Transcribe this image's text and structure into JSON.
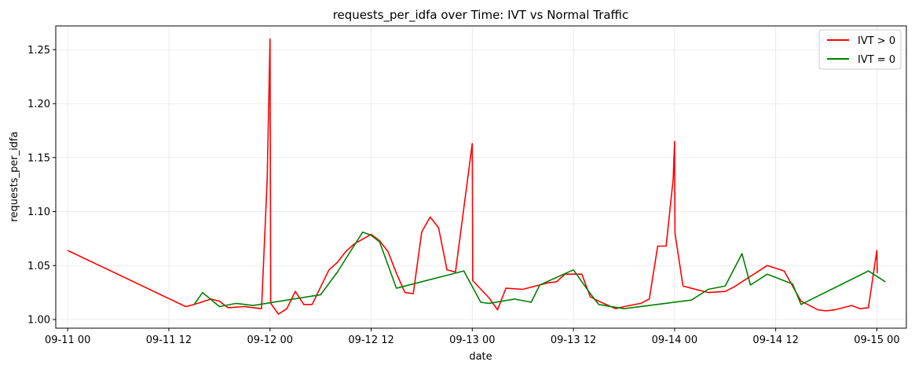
{
  "chart_data": {
    "type": "line",
    "title": "requests_per_idfa over Time: IVT vs Normal Traffic",
    "xlabel": "date",
    "ylabel": "requests_per_idfa",
    "x_unit": "datetime",
    "xlim": [
      "2024-09-10T22:35",
      "2024-09-15T03:30"
    ],
    "ylim": [
      0.992,
      1.272
    ],
    "x_ticks": [
      {
        "t": "2024-09-11T00:00",
        "label": "09-11 00"
      },
      {
        "t": "2024-09-11T12:00",
        "label": "09-11 12"
      },
      {
        "t": "2024-09-12T00:00",
        "label": "09-12 00"
      },
      {
        "t": "2024-09-12T12:00",
        "label": "09-12 12"
      },
      {
        "t": "2024-09-13T00:00",
        "label": "09-13 00"
      },
      {
        "t": "2024-09-13T12:00",
        "label": "09-13 12"
      },
      {
        "t": "2024-09-14T00:00",
        "label": "09-14 00"
      },
      {
        "t": "2024-09-14T12:00",
        "label": "09-14 12"
      },
      {
        "t": "2024-09-15T00:00",
        "label": "09-15 00"
      }
    ],
    "y_ticks": [
      {
        "v": 1.0,
        "label": "1.00"
      },
      {
        "v": 1.05,
        "label": "1.05"
      },
      {
        "v": 1.1,
        "label": "1.10"
      },
      {
        "v": 1.15,
        "label": "1.15"
      },
      {
        "v": 1.2,
        "label": "1.20"
      },
      {
        "v": 1.25,
        "label": "1.25"
      }
    ],
    "grid": true,
    "legend_position": "top-right",
    "series": [
      {
        "name": "IVT > 0",
        "color": "#ff0000",
        "points": [
          [
            "2024-09-11T00:00",
            1.064
          ],
          [
            "2024-09-11T14:00",
            1.012
          ],
          [
            "2024-09-11T15:00",
            1.014
          ],
          [
            "2024-09-11T17:00",
            1.019
          ],
          [
            "2024-09-11T18:00",
            1.017
          ],
          [
            "2024-09-11T19:00",
            1.011
          ],
          [
            "2024-09-11T21:00",
            1.012
          ],
          [
            "2024-09-11T22:00",
            1.011
          ],
          [
            "2024-09-11T23:00",
            1.01
          ],
          [
            "2024-09-11T23:40",
            1.13
          ],
          [
            "2024-09-12T00:00",
            1.26
          ],
          [
            "2024-09-12T00:05",
            1.015
          ],
          [
            "2024-09-12T01:00",
            1.005
          ],
          [
            "2024-09-12T02:00",
            1.01
          ],
          [
            "2024-09-12T03:00",
            1.026
          ],
          [
            "2024-09-12T04:00",
            1.014
          ],
          [
            "2024-09-12T05:00",
            1.014
          ],
          [
            "2024-09-12T07:00",
            1.046
          ],
          [
            "2024-09-12T08:00",
            1.053
          ],
          [
            "2024-09-12T09:00",
            1.063
          ],
          [
            "2024-09-12T10:00",
            1.07
          ],
          [
            "2024-09-12T12:00",
            1.079
          ],
          [
            "2024-09-12T13:00",
            1.073
          ],
          [
            "2024-09-12T14:00",
            1.063
          ],
          [
            "2024-09-12T15:00",
            1.043
          ],
          [
            "2024-09-12T16:00",
            1.025
          ],
          [
            "2024-09-12T17:00",
            1.024
          ],
          [
            "2024-09-12T18:00",
            1.081
          ],
          [
            "2024-09-12T19:00",
            1.095
          ],
          [
            "2024-09-12T20:00",
            1.085
          ],
          [
            "2024-09-12T21:00",
            1.046
          ],
          [
            "2024-09-12T22:00",
            1.044
          ],
          [
            "2024-09-13T00:00",
            1.163
          ],
          [
            "2024-09-13T00:03",
            1.036
          ],
          [
            "2024-09-13T02:00",
            1.02
          ],
          [
            "2024-09-13T03:00",
            1.009
          ],
          [
            "2024-09-13T04:00",
            1.029
          ],
          [
            "2024-09-13T06:00",
            1.028
          ],
          [
            "2024-09-13T09:00",
            1.034
          ],
          [
            "2024-09-13T10:00",
            1.035
          ],
          [
            "2024-09-13T11:00",
            1.042
          ],
          [
            "2024-09-13T12:00",
            1.042
          ],
          [
            "2024-09-13T13:00",
            1.042
          ],
          [
            "2024-09-13T14:00",
            1.021
          ],
          [
            "2024-09-13T15:00",
            1.017
          ],
          [
            "2024-09-13T17:00",
            1.01
          ],
          [
            "2024-09-13T18:00",
            1.012
          ],
          [
            "2024-09-13T20:00",
            1.015
          ],
          [
            "2024-09-13T21:00",
            1.019
          ],
          [
            "2024-09-13T22:00",
            1.068
          ],
          [
            "2024-09-13T23:00",
            1.068
          ],
          [
            "2024-09-13T23:50",
            1.13
          ],
          [
            "2024-09-14T00:00",
            1.165
          ],
          [
            "2024-09-14T00:03",
            1.08
          ],
          [
            "2024-09-14T01:00",
            1.031
          ],
          [
            "2024-09-14T03:00",
            1.027
          ],
          [
            "2024-09-14T04:00",
            1.025
          ],
          [
            "2024-09-14T06:00",
            1.026
          ],
          [
            "2024-09-14T07:00",
            1.03
          ],
          [
            "2024-09-14T11:00",
            1.05
          ],
          [
            "2024-09-14T13:00",
            1.045
          ],
          [
            "2024-09-14T15:00",
            1.017
          ],
          [
            "2024-09-14T16:00",
            1.013
          ],
          [
            "2024-09-14T17:00",
            1.009
          ],
          [
            "2024-09-14T18:00",
            1.008
          ],
          [
            "2024-09-14T19:00",
            1.009
          ],
          [
            "2024-09-14T21:00",
            1.013
          ],
          [
            "2024-09-14T22:00",
            1.01
          ],
          [
            "2024-09-14T23:00",
            1.011
          ],
          [
            "2024-09-15T00:00",
            1.064
          ],
          [
            "2024-09-15T00:03",
            1.043
          ]
        ]
      },
      {
        "name": "IVT = 0",
        "color": "#008000",
        "points": [
          [
            "2024-09-11T15:00",
            1.014
          ],
          [
            "2024-09-11T16:00",
            1.025
          ],
          [
            "2024-09-11T18:00",
            1.012
          ],
          [
            "2024-09-11T20:00",
            1.015
          ],
          [
            "2024-09-11T22:00",
            1.013
          ],
          [
            "2024-09-12T06:00",
            1.023
          ],
          [
            "2024-09-12T08:00",
            1.044
          ],
          [
            "2024-09-12T11:00",
            1.081
          ],
          [
            "2024-09-12T12:00",
            1.078
          ],
          [
            "2024-09-12T13:00",
            1.072
          ],
          [
            "2024-09-12T15:00",
            1.029
          ],
          [
            "2024-09-12T23:00",
            1.045
          ],
          [
            "2024-09-13T01:00",
            1.016
          ],
          [
            "2024-09-13T02:00",
            1.015
          ],
          [
            "2024-09-13T05:00",
            1.019
          ],
          [
            "2024-09-13T07:00",
            1.016
          ],
          [
            "2024-09-13T08:00",
            1.032
          ],
          [
            "2024-09-13T12:00",
            1.046
          ],
          [
            "2024-09-13T14:00",
            1.024
          ],
          [
            "2024-09-13T15:00",
            1.014
          ],
          [
            "2024-09-13T18:00",
            1.01
          ],
          [
            "2024-09-14T02:00",
            1.018
          ],
          [
            "2024-09-14T04:00",
            1.028
          ],
          [
            "2024-09-14T06:00",
            1.031
          ],
          [
            "2024-09-14T08:00",
            1.061
          ],
          [
            "2024-09-14T09:00",
            1.032
          ],
          [
            "2024-09-14T11:00",
            1.042
          ],
          [
            "2024-09-14T14:00",
            1.033
          ],
          [
            "2024-09-14T15:00",
            1.014
          ],
          [
            "2024-09-14T23:00",
            1.045
          ],
          [
            "2024-09-15T01:00",
            1.035
          ]
        ]
      }
    ]
  }
}
